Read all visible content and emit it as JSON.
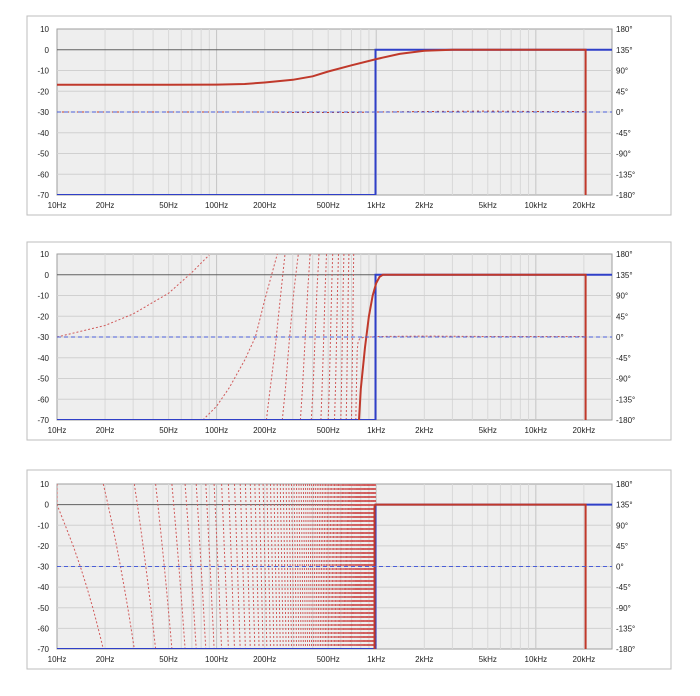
{
  "chart_data": [
    {
      "type": "line",
      "x_tick_labels": [
        "10Hz",
        "20Hz",
        "50Hz",
        "100Hz",
        "200Hz",
        "500Hz",
        "1kHz",
        "2kHz",
        "5kHz",
        "10kHz",
        "20kHz"
      ],
      "x_tick_values": [
        10,
        20,
        50,
        100,
        200,
        500,
        1000,
        2000,
        5000,
        10000,
        20000
      ],
      "y_left_tick_labels": [
        "10",
        "0",
        "-10",
        "-20",
        "-30",
        "-40",
        "-50",
        "-60",
        "-70"
      ],
      "y_right_tick_labels": [
        "180°",
        "135°",
        "90°",
        "45°",
        "0°",
        "-45°",
        "-90°",
        "-135°",
        "-180°"
      ],
      "xlim": [
        10,
        30000
      ],
      "ylim": [
        -70,
        10
      ],
      "phase_lim": [
        -180,
        180
      ],
      "x_scale": "log",
      "grid": true,
      "series": [
        {
          "color": "#2f3fc8",
          "style": "solid",
          "role": "target magnitude",
          "x": [
            10,
            990,
            990,
            1000,
            30000
          ],
          "y": [
            -70,
            -70,
            0,
            0,
            0
          ]
        },
        {
          "color": "#c0392b",
          "style": "solid",
          "role": "measured magnitude",
          "x": [
            10,
            50,
            100,
            150,
            200,
            300,
            400,
            500,
            700,
            1000,
            1400,
            2000,
            3000,
            10000,
            20500,
            20500
          ],
          "y": [
            -16.9,
            -16.9,
            -16.8,
            -16.5,
            -15.8,
            -14.5,
            -12.8,
            -10.5,
            -7.5,
            -4.5,
            -2,
            -0.5,
            0,
            0,
            0,
            -70
          ]
        },
        {
          "color": "#c0392b",
          "style": "dotted",
          "role": "phase",
          "x": [
            10,
            200,
            300,
            500,
            700,
            1000,
            2000,
            5000,
            10000,
            20000
          ],
          "y": [
            0,
            0,
            -1,
            -1,
            -1,
            0,
            1,
            2,
            1,
            1
          ]
        },
        {
          "color": "#4a5ed8",
          "style": "dashed",
          "role": "target phase",
          "x": [
            10,
            30000
          ],
          "y": [
            0,
            0
          ]
        }
      ]
    },
    {
      "type": "line",
      "x_tick_labels": [
        "10Hz",
        "20Hz",
        "50Hz",
        "100Hz",
        "200Hz",
        "500Hz",
        "1kHz",
        "2kHz",
        "5kHz",
        "10kHz",
        "20kHz"
      ],
      "x_tick_values": [
        10,
        20,
        50,
        100,
        200,
        500,
        1000,
        2000,
        5000,
        10000,
        20000
      ],
      "y_left_tick_labels": [
        "10",
        "0",
        "-10",
        "-20",
        "-30",
        "-40",
        "-50",
        "-60",
        "-70"
      ],
      "y_right_tick_labels": [
        "180°",
        "135°",
        "90°",
        "45°",
        "0°",
        "-45°",
        "-90°",
        "-135°",
        "-180°"
      ],
      "xlim": [
        10,
        30000
      ],
      "ylim": [
        -70,
        10
      ],
      "phase_lim": [
        -180,
        180
      ],
      "x_scale": "log",
      "grid": true,
      "series": [
        {
          "color": "#2f3fc8",
          "style": "solid",
          "role": "target magnitude",
          "x": [
            10,
            990,
            990,
            1000,
            30000
          ],
          "y": [
            -70,
            -70,
            0,
            0,
            0
          ]
        },
        {
          "color": "#c0392b",
          "style": "solid",
          "role": "measured magnitude",
          "x": [
            780,
            800,
            850,
            900,
            950,
            1000,
            1050,
            1100,
            3000,
            20500,
            20500
          ],
          "y": [
            -70,
            -55,
            -35,
            -20,
            -10,
            -4,
            -1,
            0,
            0,
            0,
            -70
          ]
        },
        {
          "color": "#4a5ed8",
          "style": "dashed",
          "role": "target phase",
          "x": [
            10,
            30000
          ],
          "y": [
            0,
            0
          ]
        }
      ],
      "phase_wraps": [
        {
          "x": [
            10,
            20,
            30,
            50,
            70,
            90
          ],
          "y": [
            0,
            25,
            50,
            95,
            140,
            178
          ]
        },
        {
          "x": [
            82,
            100,
            120,
            150,
            175,
            200,
            240
          ],
          "y": [
            -180,
            -150,
            -110,
            -50,
            0,
            80,
            180
          ]
        },
        {
          "x": [
            205,
            215,
            230,
            250,
            268
          ],
          "y": [
            -180,
            -120,
            -40,
            80,
            180
          ]
        },
        {
          "x": [
            258,
            270,
            285,
            305,
            325
          ],
          "y": [
            -180,
            -110,
            -10,
            100,
            180
          ]
        },
        {
          "x": [
            335,
            345,
            358,
            372,
            385
          ],
          "y": [
            -180,
            -110,
            -10,
            100,
            180
          ]
        },
        {
          "x": [
            392,
            402,
            413,
            425,
            438
          ],
          "y": [
            -180,
            -110,
            -10,
            100,
            180
          ]
        },
        {
          "x": [
            450,
            458,
            468,
            478,
            488
          ],
          "y": [
            -180,
            -110,
            -10,
            100,
            180
          ]
        },
        {
          "x": [
            500,
            508,
            516,
            525,
            534
          ],
          "y": [
            -180,
            -110,
            -10,
            100,
            180
          ]
        },
        {
          "x": [
            548,
            556,
            564,
            572,
            580
          ],
          "y": [
            -180,
            -110,
            -10,
            100,
            180
          ]
        },
        {
          "x": [
            600,
            606,
            613,
            620,
            627
          ],
          "y": [
            -180,
            -110,
            -10,
            100,
            180
          ]
        },
        {
          "x": [
            648,
            654,
            660,
            667,
            674
          ],
          "y": [
            -180,
            -110,
            -10,
            100,
            180
          ]
        },
        {
          "x": [
            700,
            705,
            711,
            717,
            723
          ],
          "y": [
            -180,
            -110,
            -10,
            100,
            180
          ]
        },
        {
          "x": [
            745,
            752,
            760,
            770,
            790,
            830,
            900,
            1000,
            2000,
            5000,
            20000
          ],
          "y": [
            -180,
            -100,
            -30,
            -10,
            -3,
            -1,
            0,
            1,
            2,
            1,
            1
          ]
        }
      ]
    },
    {
      "type": "line",
      "x_tick_labels": [
        "10Hz",
        "20Hz",
        "50Hz",
        "100Hz",
        "200Hz",
        "500Hz",
        "1kHz",
        "2kHz",
        "5kHz",
        "10kHz",
        "20kHz"
      ],
      "x_tick_values": [
        10,
        20,
        50,
        100,
        200,
        500,
        1000,
        2000,
        5000,
        10000,
        20000
      ],
      "y_left_tick_labels": [
        "10",
        "0",
        "-10",
        "-20",
        "-30",
        "-40",
        "-50",
        "-60",
        "-70"
      ],
      "y_right_tick_labels": [
        "180°",
        "135°",
        "90°",
        "45°",
        "0°",
        "-45°",
        "-90°",
        "-135°",
        "-180°"
      ],
      "xlim": [
        10,
        30000
      ],
      "ylim": [
        -70,
        10
      ],
      "phase_lim": [
        -180,
        180
      ],
      "x_scale": "log",
      "grid": true,
      "series": [
        {
          "color": "#2f3fc8",
          "style": "solid",
          "role": "target magnitude",
          "x": [
            10,
            990,
            990,
            1000,
            30000
          ],
          "y": [
            -70,
            -70,
            0,
            0,
            0
          ]
        },
        {
          "color": "#c0392b",
          "style": "solid",
          "role": "measured magnitude",
          "x": [
            975,
            975,
            990,
            20500,
            20500
          ],
          "y": [
            -70,
            -1,
            0,
            0,
            -70
          ]
        },
        {
          "color": "#4a5ed8",
          "style": "dashed",
          "role": "target phase",
          "x": [
            10,
            30000
          ],
          "y": [
            0,
            0
          ]
        }
      ],
      "phase_ramps": {
        "f_start": 10,
        "f_end": 1000,
        "period_hz": 11,
        "first_crossing_hz": 14,
        "after_cutoff_phase": 0
      }
    }
  ]
}
